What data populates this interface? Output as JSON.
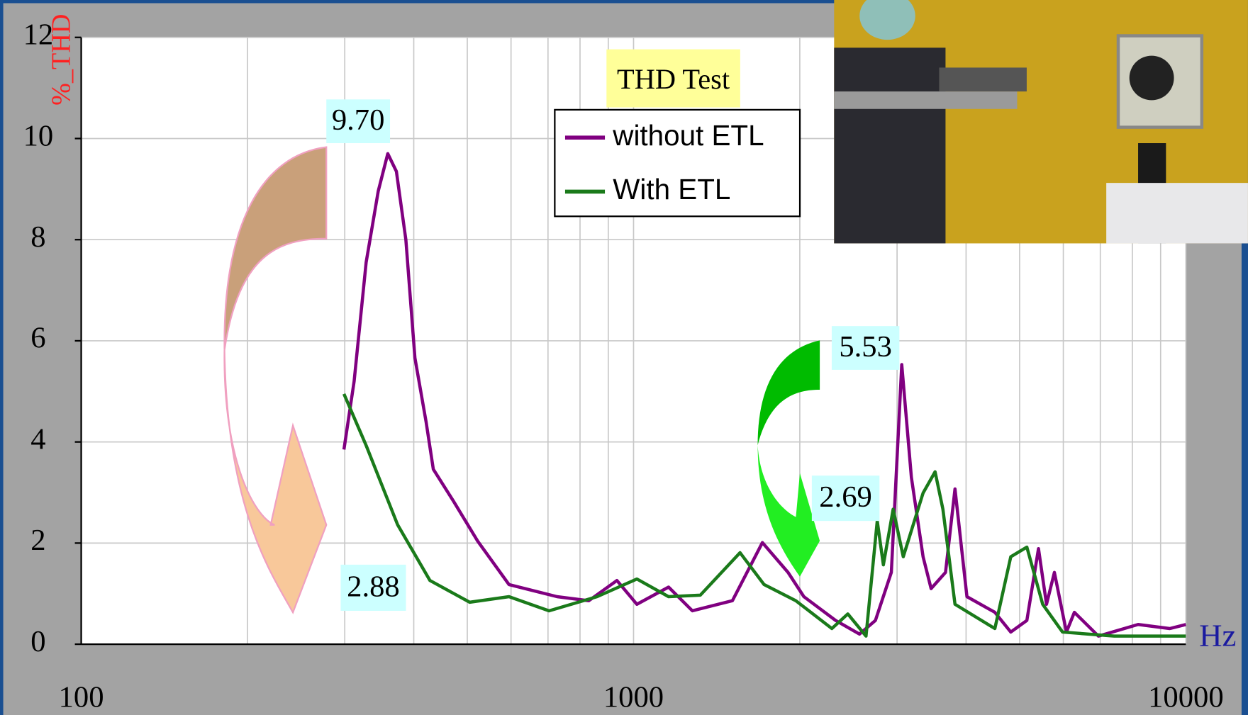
{
  "chart_data": {
    "type": "line",
    "title": "THD Test",
    "y_label": "%_THD",
    "x_label": "Hz",
    "log_x": true,
    "grid": true,
    "legend": "upper-center",
    "xlim": [
      100,
      10000
    ],
    "xticks": [
      100,
      1000,
      10000
    ],
    "ylim": [
      0,
      12
    ],
    "yticks": [
      0,
      2,
      4,
      6,
      8,
      10,
      12
    ],
    "series": [
      {
        "name": "without ETL",
        "color": "#800080",
        "x": [
          299,
          312,
          328,
          345,
          359,
          372,
          387,
          402,
          421,
          434,
          472,
          522,
          595,
          727,
          830,
          933,
          1014,
          1157,
          1278,
          1510,
          1711,
          1904,
          2034,
          2322,
          2565,
          2741,
          2929,
          3059,
          3184,
          3344,
          3457,
          3671,
          3819,
          4014,
          4510,
          4819,
          5153,
          5410,
          5594,
          5781,
          6077,
          6283,
          6945,
          8194,
          9350,
          10000
        ],
        "values": [
          3.85,
          5.2,
          7.55,
          8.96,
          9.7,
          9.35,
          8.0,
          5.66,
          4.4,
          3.46,
          2.83,
          2.04,
          1.18,
          0.94,
          0.86,
          1.26,
          0.79,
          1.13,
          0.66,
          0.86,
          2.01,
          1.42,
          0.94,
          0.47,
          0.2,
          0.47,
          1.42,
          5.53,
          3.3,
          1.73,
          1.1,
          1.42,
          3.07,
          0.94,
          0.63,
          0.24,
          0.47,
          1.89,
          0.79,
          1.42,
          0.24,
          0.63,
          0.16,
          0.39,
          0.31,
          0.39
        ]
      },
      {
        "name": "With ETL",
        "color": "#1a7a1a",
        "x": [
          299,
          328,
          374,
          428,
          505,
          595,
          703,
          859,
          1014,
          1157,
          1321,
          1559,
          1723,
          1967,
          2286,
          2443,
          2636,
          2762,
          2833,
          2951,
          3078,
          3344,
          3515,
          3632,
          3819,
          4510,
          4819,
          5153,
          5505,
          5980,
          7418,
          9057,
          10000
        ],
        "values": [
          4.95,
          3.93,
          2.36,
          1.26,
          0.83,
          0.94,
          0.66,
          0.94,
          1.29,
          0.94,
          0.97,
          1.81,
          1.18,
          0.86,
          0.31,
          0.6,
          0.16,
          2.44,
          1.57,
          2.67,
          1.73,
          2.99,
          3.41,
          2.67,
          0.79,
          0.31,
          1.73,
          1.92,
          0.79,
          0.24,
          0.16,
          0.16,
          0.16
        ]
      }
    ],
    "annotations": [
      {
        "text": "9.70"
      },
      {
        "text": "2.88"
      },
      {
        "text": "5.53"
      },
      {
        "text": "2.69"
      }
    ]
  }
}
